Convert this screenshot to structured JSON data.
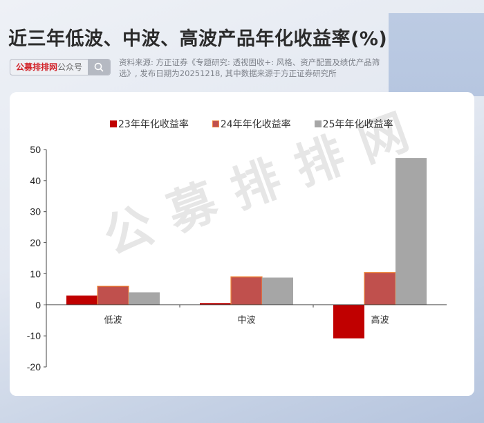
{
  "header": {
    "title": "近三年低波、中波、高波产品年化收益率(%)",
    "search": {
      "brand": "公募排排网",
      "suffix": "公众号",
      "button_icon": "search-icon"
    },
    "source": "资料来源: 方正证券《专题研究: 透视固收+: 风格、资产配置及绩优产品筛选》, 发布日期为20251218, 其中数据来源于方正证券研究所"
  },
  "watermark": "公募排排网",
  "legend": [
    {
      "label": "23年年化收益率",
      "color": "#c00000"
    },
    {
      "label": "24年年化收益率",
      "color": "#c0504d"
    },
    {
      "label": "25年年化收益率",
      "color": "#a6a6a6"
    }
  ],
  "chart_data": {
    "type": "bar",
    "title": "近三年低波、中波、高波产品年化收益率(%)",
    "xlabel": "",
    "ylabel": "",
    "categories": [
      "低波",
      "中波",
      "高波"
    ],
    "series": [
      {
        "name": "23年年化收益率",
        "color": "#c00000",
        "values": [
          3.0,
          0.5,
          -10.8
        ]
      },
      {
        "name": "24年年化收益率",
        "color": "#c0504d",
        "values": [
          6.0,
          9.0,
          10.4
        ]
      },
      {
        "name": "25年年化收益率",
        "color": "#a6a6a6",
        "values": [
          4.0,
          8.8,
          47.3
        ]
      }
    ],
    "ylim": [
      -20,
      50
    ],
    "yticks": [
      50,
      40,
      30,
      20,
      10,
      0,
      -10,
      -20
    ],
    "grid": false,
    "legend_position": "top"
  }
}
